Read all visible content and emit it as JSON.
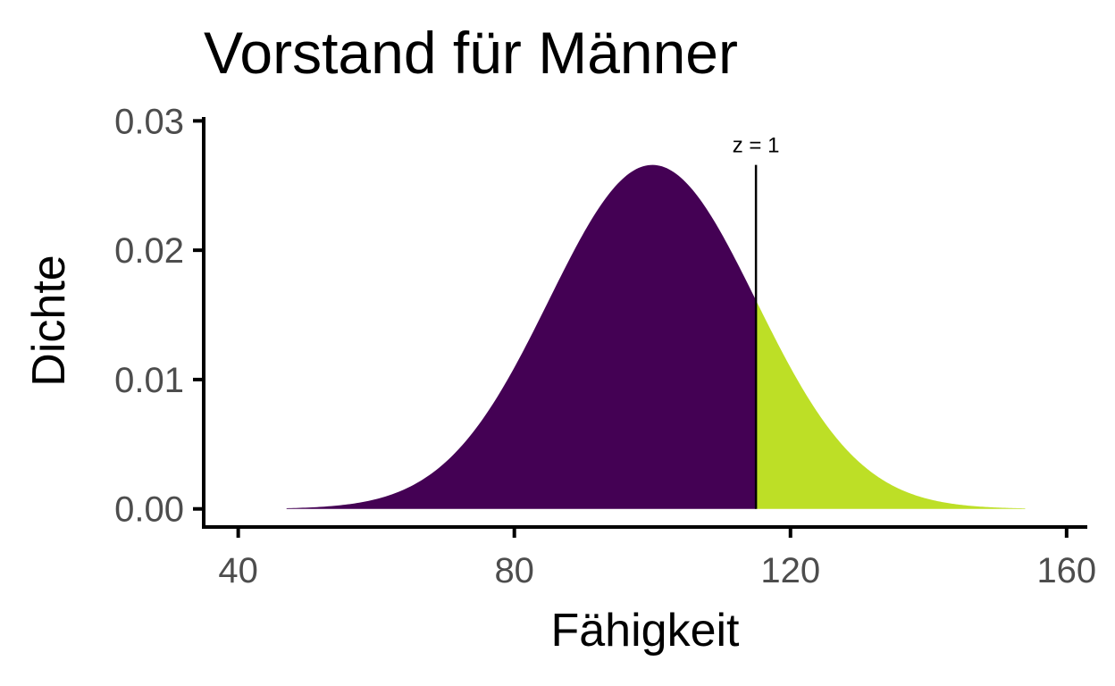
{
  "chart_data": {
    "type": "area",
    "title": "Vorstand  für Männer",
    "xlabel": "Fähigkeit",
    "ylabel": "Dichte",
    "xlim": [
      35,
      163
    ],
    "ylim": [
      -0.0014,
      0.0303
    ],
    "x_ticks": [
      40,
      80,
      120,
      160
    ],
    "x_tick_labels": [
      "40",
      "80",
      "120",
      "160"
    ],
    "y_ticks": [
      0,
      0.01,
      0.02,
      0.03
    ],
    "y_tick_labels": [
      "0.00",
      "0.01",
      "0.02",
      "0.03"
    ],
    "curve": {
      "distribution": "normal",
      "mean": 100,
      "sd": 15,
      "x_range": [
        47,
        154
      ]
    },
    "regions": [
      {
        "x_from": 47,
        "x_to": 115,
        "color": "#440154"
      },
      {
        "x_from": 115,
        "x_to": 154,
        "color": "#bddf26"
      }
    ],
    "cutoff": {
      "x": 115,
      "label": "z =  1"
    },
    "grid": false,
    "legend": "none"
  }
}
